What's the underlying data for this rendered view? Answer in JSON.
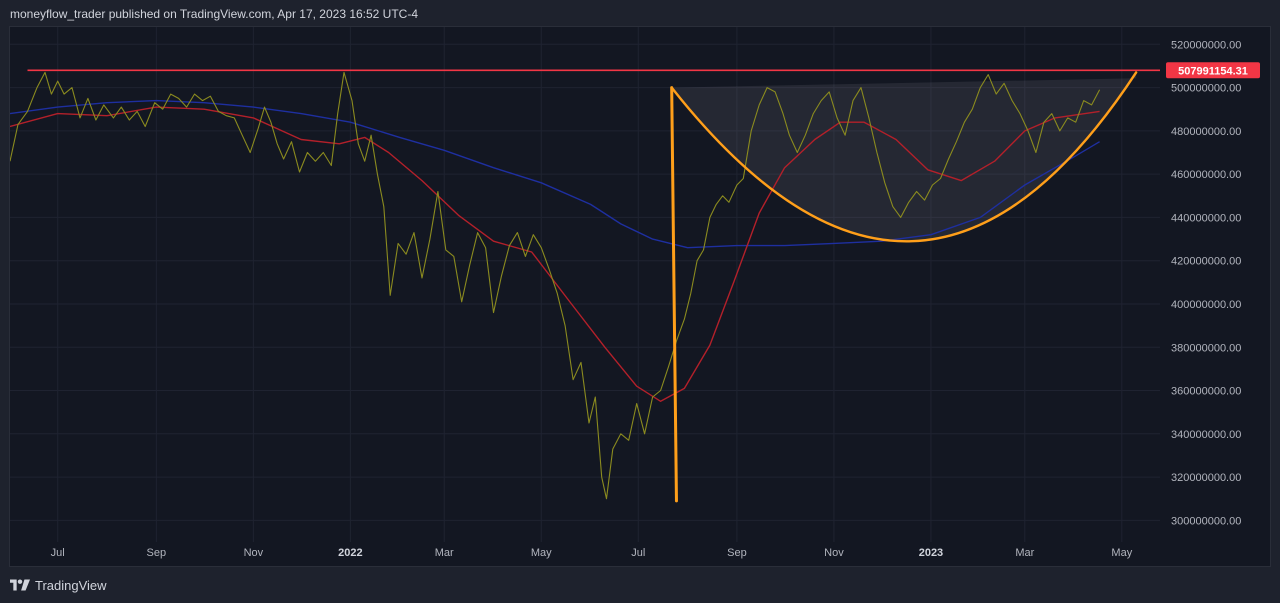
{
  "header": {
    "publish_line": "moneyflow_trader published on TradingView.com, Apr 17, 2023 16:52 UTC-4"
  },
  "footer": {
    "brand": "TradingView",
    "logo_icon": "tradingview-logo-icon"
  },
  "colors": {
    "background": "#131722",
    "page_bg": "#1e222d",
    "price_line": "#8b8b1f",
    "ma_fast": "#b3202a",
    "ma_slow": "#1e2fa0",
    "resistance": "#f23645",
    "cup_pattern": "#ff9f1a",
    "badge": "#f23645"
  },
  "chart_data": {
    "type": "line",
    "title": "",
    "xlabel": "",
    "ylabel": "",
    "ylim": [
      290000000,
      528000000
    ],
    "x_ticks": [
      "Jul",
      "Sep",
      "Nov",
      "2022",
      "Mar",
      "May",
      "Jul",
      "Sep",
      "Nov",
      "2023",
      "Mar",
      "May"
    ],
    "y_ticks": [
      "520000000.00",
      "500000000.00",
      "480000000.00",
      "460000000.00",
      "440000000.00",
      "420000000.00",
      "400000000.00",
      "380000000.00",
      "360000000.00",
      "340000000.00",
      "320000000.00",
      "300000000.00"
    ],
    "x_range": [
      "2021-06-01",
      "2023-05-25"
    ],
    "resistance_level": 507991154.31,
    "resistance_label": "507991154.31",
    "series": [
      {
        "key": "price",
        "points": [
          [
            "2021-06-01",
            466
          ],
          [
            "2021-06-06",
            483
          ],
          [
            "2021-06-12",
            489
          ],
          [
            "2021-06-18",
            500
          ],
          [
            "2021-06-23",
            507
          ],
          [
            "2021-06-27",
            497
          ],
          [
            "2021-07-01",
            503
          ],
          [
            "2021-07-05",
            497
          ],
          [
            "2021-07-10",
            500
          ],
          [
            "2021-07-15",
            486
          ],
          [
            "2021-07-20",
            495
          ],
          [
            "2021-07-25",
            485
          ],
          [
            "2021-07-30",
            492
          ],
          [
            "2021-08-05",
            486
          ],
          [
            "2021-08-10",
            491
          ],
          [
            "2021-08-15",
            485
          ],
          [
            "2021-08-20",
            489
          ],
          [
            "2021-08-25",
            482
          ],
          [
            "2021-08-31",
            493
          ],
          [
            "2021-09-05",
            490
          ],
          [
            "2021-09-10",
            497
          ],
          [
            "2021-09-15",
            495
          ],
          [
            "2021-09-20",
            491
          ],
          [
            "2021-09-25",
            497
          ],
          [
            "2021-09-30",
            494
          ],
          [
            "2021-10-05",
            496
          ],
          [
            "2021-10-10",
            489
          ],
          [
            "2021-10-15",
            487
          ],
          [
            "2021-10-20",
            486
          ],
          [
            "2021-10-25",
            478
          ],
          [
            "2021-10-30",
            470
          ],
          [
            "2021-11-04",
            481
          ],
          [
            "2021-11-08",
            491
          ],
          [
            "2021-11-12",
            484
          ],
          [
            "2021-11-16",
            474
          ],
          [
            "2021-11-20",
            467
          ],
          [
            "2021-11-25",
            475
          ],
          [
            "2021-11-30",
            461
          ],
          [
            "2021-12-05",
            470
          ],
          [
            "2021-12-10",
            466
          ],
          [
            "2021-12-15",
            470
          ],
          [
            "2021-12-20",
            464
          ],
          [
            "2021-12-24",
            488
          ],
          [
            "2021-12-28",
            507
          ],
          [
            "2022-01-02",
            494
          ],
          [
            "2022-01-06",
            474
          ],
          [
            "2022-01-10",
            466
          ],
          [
            "2022-01-14",
            478
          ],
          [
            "2022-01-18",
            460
          ],
          [
            "2022-01-22",
            445
          ],
          [
            "2022-01-26",
            404
          ],
          [
            "2022-01-31",
            428
          ],
          [
            "2022-02-05",
            423
          ],
          [
            "2022-02-10",
            433
          ],
          [
            "2022-02-15",
            412
          ],
          [
            "2022-02-20",
            430
          ],
          [
            "2022-02-25",
            452
          ],
          [
            "2022-03-02",
            425
          ],
          [
            "2022-03-07",
            422
          ],
          [
            "2022-03-12",
            401
          ],
          [
            "2022-03-17",
            418
          ],
          [
            "2022-03-22",
            433
          ],
          [
            "2022-03-27",
            426
          ],
          [
            "2022-04-01",
            396
          ],
          [
            "2022-04-06",
            413
          ],
          [
            "2022-04-11",
            427
          ],
          [
            "2022-04-16",
            433
          ],
          [
            "2022-04-21",
            422
          ],
          [
            "2022-04-26",
            432
          ],
          [
            "2022-05-01",
            426
          ],
          [
            "2022-05-06",
            416
          ],
          [
            "2022-05-11",
            405
          ],
          [
            "2022-05-16",
            390
          ],
          [
            "2022-05-21",
            365
          ],
          [
            "2022-05-26",
            373
          ],
          [
            "2022-05-31",
            345
          ],
          [
            "2022-06-04",
            357
          ],
          [
            "2022-06-08",
            320
          ],
          [
            "2022-06-11",
            310
          ],
          [
            "2022-06-15",
            333
          ],
          [
            "2022-06-20",
            340
          ],
          [
            "2022-06-25",
            337
          ],
          [
            "2022-06-30",
            354
          ],
          [
            "2022-07-05",
            340
          ],
          [
            "2022-07-10",
            357
          ],
          [
            "2022-07-15",
            360
          ],
          [
            "2022-07-20",
            371
          ],
          [
            "2022-07-25",
            383
          ],
          [
            "2022-07-30",
            393
          ],
          [
            "2022-08-03",
            405
          ],
          [
            "2022-08-07",
            420
          ],
          [
            "2022-08-11",
            425
          ],
          [
            "2022-08-15",
            440
          ],
          [
            "2022-08-19",
            446
          ],
          [
            "2022-08-23",
            450
          ],
          [
            "2022-08-27",
            447
          ],
          [
            "2022-09-01",
            455
          ],
          [
            "2022-09-05",
            458
          ],
          [
            "2022-09-10",
            480
          ],
          [
            "2022-09-15",
            492
          ],
          [
            "2022-09-20",
            500
          ],
          [
            "2022-09-25",
            498
          ],
          [
            "2022-09-30",
            488
          ],
          [
            "2022-10-04",
            478
          ],
          [
            "2022-10-09",
            470
          ],
          [
            "2022-10-14",
            478
          ],
          [
            "2022-10-19",
            488
          ],
          [
            "2022-10-24",
            494
          ],
          [
            "2022-10-29",
            498
          ],
          [
            "2022-11-03",
            486
          ],
          [
            "2022-11-08",
            478
          ],
          [
            "2022-11-13",
            494
          ],
          [
            "2022-11-18",
            500
          ],
          [
            "2022-11-23",
            486
          ],
          [
            "2022-11-28",
            470
          ],
          [
            "2022-12-03",
            456
          ],
          [
            "2022-12-08",
            445
          ],
          [
            "2022-12-13",
            440
          ],
          [
            "2022-12-18",
            447
          ],
          [
            "2022-12-23",
            452
          ],
          [
            "2022-12-28",
            448
          ],
          [
            "2023-01-02",
            455
          ],
          [
            "2023-01-07",
            458
          ],
          [
            "2023-01-12",
            467
          ],
          [
            "2023-01-17",
            475
          ],
          [
            "2023-01-22",
            484
          ],
          [
            "2023-01-27",
            490
          ],
          [
            "2023-02-01",
            500
          ],
          [
            "2023-02-06",
            506
          ],
          [
            "2023-02-11",
            497
          ],
          [
            "2023-02-16",
            502
          ],
          [
            "2023-02-21",
            494
          ],
          [
            "2023-02-26",
            488
          ],
          [
            "2023-03-03",
            480
          ],
          [
            "2023-03-08",
            470
          ],
          [
            "2023-03-13",
            484
          ],
          [
            "2023-03-18",
            488
          ],
          [
            "2023-03-23",
            480
          ],
          [
            "2023-03-28",
            486
          ],
          [
            "2023-04-02",
            484
          ],
          [
            "2023-04-07",
            494
          ],
          [
            "2023-04-12",
            492
          ],
          [
            "2023-04-17",
            499
          ]
        ]
      },
      {
        "key": "ma_fast",
        "points": [
          [
            "2021-06-01",
            482
          ],
          [
            "2021-07-01",
            488
          ],
          [
            "2021-08-01",
            487
          ],
          [
            "2021-09-01",
            491
          ],
          [
            "2021-10-01",
            490
          ],
          [
            "2021-11-01",
            486
          ],
          [
            "2021-12-01",
            476
          ],
          [
            "2021-12-25",
            474
          ],
          [
            "2022-01-10",
            477
          ],
          [
            "2022-01-25",
            470
          ],
          [
            "2022-02-15",
            457
          ],
          [
            "2022-03-10",
            441
          ],
          [
            "2022-04-01",
            429
          ],
          [
            "2022-04-25",
            424
          ],
          [
            "2022-05-20",
            400
          ],
          [
            "2022-06-10",
            380
          ],
          [
            "2022-06-30",
            362
          ],
          [
            "2022-07-15",
            355
          ],
          [
            "2022-07-30",
            361
          ],
          [
            "2022-08-15",
            381
          ],
          [
            "2022-08-30",
            410
          ],
          [
            "2022-09-15",
            442
          ],
          [
            "2022-10-01",
            463
          ],
          [
            "2022-10-20",
            476
          ],
          [
            "2022-11-05",
            484
          ],
          [
            "2022-11-20",
            484
          ],
          [
            "2022-12-10",
            476
          ],
          [
            "2022-12-30",
            462
          ],
          [
            "2023-01-20",
            457
          ],
          [
            "2023-02-10",
            466
          ],
          [
            "2023-03-01",
            480
          ],
          [
            "2023-03-20",
            486
          ],
          [
            "2023-04-17",
            489
          ]
        ]
      },
      {
        "key": "ma_slow",
        "points": [
          [
            "2021-06-01",
            488
          ],
          [
            "2021-07-01",
            491
          ],
          [
            "2021-08-01",
            493
          ],
          [
            "2021-09-01",
            494
          ],
          [
            "2021-10-01",
            493
          ],
          [
            "2021-11-01",
            491
          ],
          [
            "2021-12-01",
            488
          ],
          [
            "2022-01-01",
            484
          ],
          [
            "2022-02-01",
            477
          ],
          [
            "2022-03-01",
            471
          ],
          [
            "2022-04-01",
            463
          ],
          [
            "2022-05-01",
            456
          ],
          [
            "2022-06-01",
            446
          ],
          [
            "2022-06-20",
            437
          ],
          [
            "2022-07-10",
            430
          ],
          [
            "2022-08-01",
            426
          ],
          [
            "2022-09-01",
            427
          ],
          [
            "2022-10-01",
            427
          ],
          [
            "2022-11-01",
            428
          ],
          [
            "2022-12-01",
            429
          ],
          [
            "2023-01-01",
            432
          ],
          [
            "2023-02-01",
            440
          ],
          [
            "2023-03-01",
            455
          ],
          [
            "2023-04-01",
            468
          ],
          [
            "2023-04-17",
            475
          ]
        ]
      }
    ],
    "annotations": {
      "resistance_line": {
        "from": "2021-06-12",
        "to": "2023-05-25",
        "value": 507991154.31
      },
      "cup_pattern": {
        "rim_left": [
          "2022-07-22",
          500
        ],
        "drop_bottom": [
          "2022-07-25",
          309
        ],
        "trough": [
          "2022-12-20",
          429
        ],
        "rim_right": [
          "2023-05-10",
          507
        ]
      }
    }
  }
}
